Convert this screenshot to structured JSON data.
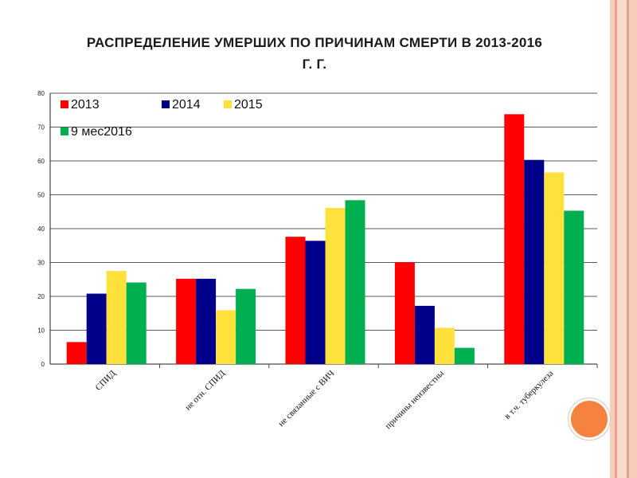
{
  "slide": {
    "title_line1": "РАСПРЕДЕЛЕНИЕ  УМЕРШИХ ПО ПРИЧИНАМ СМЕРТИ В 2013-2016",
    "title_line2": "Г. Г."
  },
  "theme": {
    "stripe_colors": [
      "#f4cdbd",
      "#e8a385",
      "#f8dccf",
      "#e8a385",
      "#f4cdbd"
    ],
    "circle_color": "#f5823f",
    "grid_color": "#222222"
  },
  "chart_data": {
    "type": "bar",
    "title": "",
    "xlabel": "",
    "ylabel": "",
    "ylim": [
      0,
      80
    ],
    "yticks": [
      0,
      10,
      20,
      30,
      40,
      50,
      60,
      70,
      80
    ],
    "grid": true,
    "legend_position": "top-left",
    "categories": [
      "СПИД",
      "не отн. СПИД",
      "не связанные с ВИЧ",
      "причины неизвестны",
      "в т.ч. туберкулеза"
    ],
    "series": [
      {
        "name": "2013",
        "color": "#ff0000",
        "values": [
          6.5,
          25.2,
          37.6,
          30.1,
          73.8
        ]
      },
      {
        "name": "2014",
        "color": "#00008b",
        "values": [
          20.8,
          25.2,
          36.4,
          17.2,
          60.3
        ]
      },
      {
        "name": "2015",
        "color": "#ffe13b",
        "values": [
          27.5,
          15.9,
          46.1,
          10.7,
          56.6
        ]
      },
      {
        "name": "9 мес2016",
        "color": "#00b050",
        "values": [
          24.1,
          22.2,
          48.4,
          4.8,
          45.3
        ]
      }
    ]
  }
}
